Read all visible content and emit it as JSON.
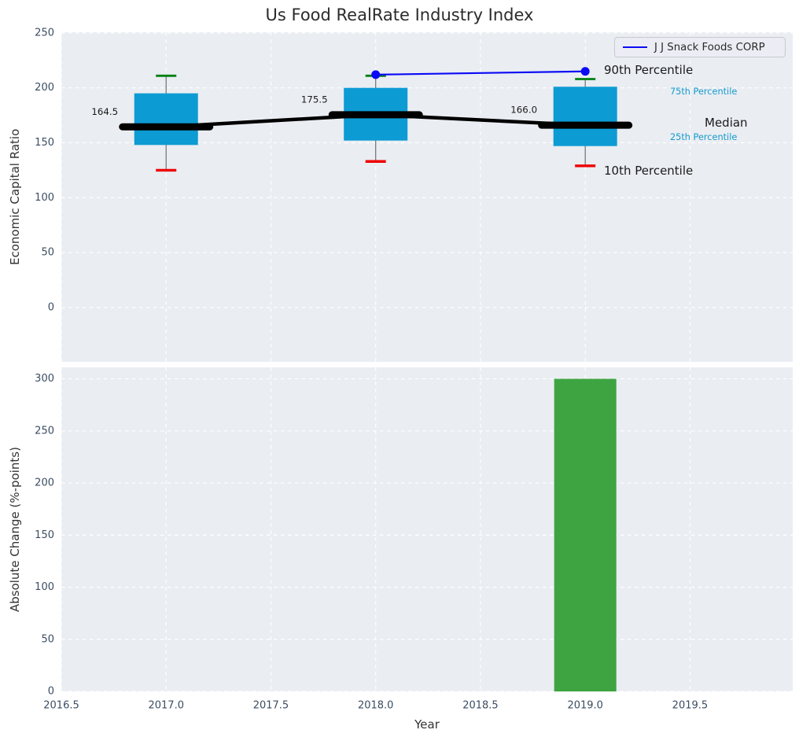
{
  "title": "Us Food RealRate Industry Index",
  "legend": {
    "label": "J J Snack Foods CORP"
  },
  "annotations": {
    "p90": "90th Percentile",
    "p75": "75th Percentile",
    "median": "Median",
    "p25": "25th Percentile",
    "p10": "10th Percentile"
  },
  "colors": {
    "plot_bg": "#eaedf2",
    "grid": "#ffffff",
    "box_fill": "#0d9bd3",
    "bar_fill": "#3da441",
    "company_line": "#0a0af5",
    "median_line": "#000000",
    "whisker_line": "#6f6f6f",
    "cap_high": "#008010",
    "cap_low": "#ef0000",
    "tick_text": "#3b4d62",
    "annotation_text": "#1a1a1a",
    "accent_text": "#149bce"
  },
  "chart_data": [
    {
      "type": "boxplot",
      "title": "Us Food RealRate Industry Index",
      "xlabel": "Year",
      "ylabel": "Economic Capital Ratio",
      "xlim": [
        2016.5,
        2019.99
      ],
      "ylim": [
        -49.4,
        250.6
      ],
      "xticks": [
        "2016.5",
        "2017.0",
        "2017.5",
        "2018.0",
        "2018.5",
        "2019.0",
        "2019.5"
      ],
      "yticks": [
        0,
        50,
        100,
        150,
        200,
        250
      ],
      "grid": true,
      "legend_position": "upper right",
      "boxes": [
        {
          "year": 2017,
          "p10": 125,
          "p25": 148,
          "median": 164.5,
          "p75": 195,
          "p90": 211,
          "label": "164.5"
        },
        {
          "year": 2018,
          "p10": 133,
          "p25": 152,
          "median": 175.5,
          "p75": 200,
          "p90": 211,
          "label": "175.5"
        },
        {
          "year": 2019,
          "p10": 129,
          "p25": 147,
          "median": 166.0,
          "p75": 201,
          "p90": 208,
          "label": "166.0"
        }
      ],
      "series": [
        {
          "name": "J J Snack Foods CORP",
          "x": [
            2018,
            2019
          ],
          "y": [
            212,
            215
          ]
        }
      ]
    },
    {
      "type": "bar",
      "xlabel": "Year",
      "ylabel": "Absolute Change (%-points)",
      "xlim": [
        2016.5,
        2019.99
      ],
      "ylim": [
        0,
        311
      ],
      "xticks": [
        "2016.5",
        "2017.0",
        "2017.5",
        "2018.0",
        "2018.5",
        "2019.0",
        "2019.5"
      ],
      "yticks": [
        0,
        50,
        100,
        150,
        200,
        250,
        300
      ],
      "grid": true,
      "x": [
        2019
      ],
      "values": [
        300
      ]
    }
  ]
}
